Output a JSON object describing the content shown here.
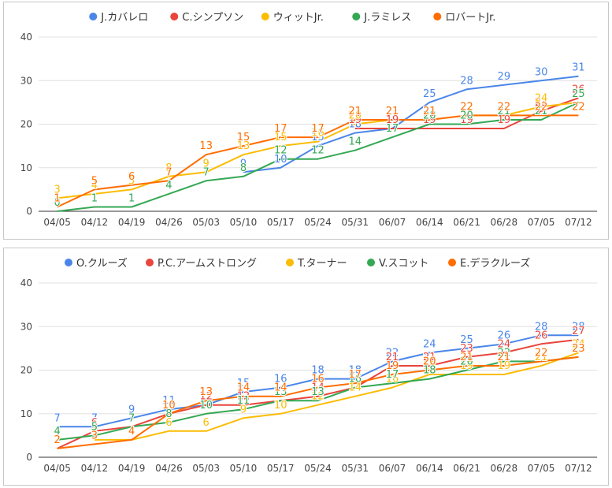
{
  "chart_data": [
    {
      "type": "line",
      "title": "",
      "xlabel": "",
      "ylabel": "",
      "ylim": [
        0,
        40
      ],
      "yticks": [
        0,
        10,
        20,
        30,
        40
      ],
      "grid": true,
      "legend": "top",
      "categories": [
        "04/05",
        "04/12",
        "04/19",
        "04/26",
        "05/03",
        "05/10",
        "05/17",
        "05/24",
        "05/31",
        "06/07",
        "06/14",
        "06/21",
        "06/28",
        "07/05",
        "07/12"
      ],
      "series": [
        {
          "name": "J.カバレロ",
          "color": "#4a86e8",
          "values": [
            null,
            null,
            null,
            null,
            null,
            9,
            10,
            15,
            18,
            19,
            25,
            28,
            29,
            30,
            31
          ]
        },
        {
          "name": "C.シンプソン",
          "color": "#e8453c",
          "values": [
            null,
            null,
            null,
            null,
            null,
            null,
            null,
            null,
            19,
            19,
            19,
            19,
            19,
            23,
            26
          ]
        },
        {
          "name": "ウィットJr.",
          "color": "#fbbc04",
          "values": [
            3,
            4,
            5,
            8,
            9,
            13,
            15,
            16,
            20,
            21,
            21,
            22,
            22,
            24,
            25
          ]
        },
        {
          "name": "J.ラミレス",
          "color": "#34a853",
          "values": [
            0,
            1,
            1,
            4,
            7,
            8,
            12,
            12,
            14,
            17,
            20,
            20,
            21,
            21,
            25
          ]
        },
        {
          "name": "ロバートJr.",
          "color": "#ff6d01",
          "values": [
            1,
            5,
            6,
            7,
            13,
            15,
            17,
            17,
            21,
            21,
            21,
            22,
            22,
            22,
            22
          ]
        }
      ]
    },
    {
      "type": "line",
      "title": "",
      "xlabel": "",
      "ylabel": "",
      "ylim": [
        0,
        40
      ],
      "yticks": [
        0,
        10,
        20,
        30,
        40
      ],
      "grid": true,
      "legend": "top",
      "categories": [
        "04/05",
        "04/12",
        "04/19",
        "04/26",
        "05/03",
        "05/10",
        "05/17",
        "05/24",
        "05/31",
        "06/07",
        "06/14",
        "06/21",
        "06/28",
        "07/05",
        "07/12"
      ],
      "series": [
        {
          "name": "O.クルーズ",
          "color": "#4a86e8",
          "values": [
            7,
            7,
            9,
            11,
            12,
            15,
            16,
            18,
            18,
            22,
            24,
            25,
            26,
            28,
            28
          ]
        },
        {
          "name": "P.C.アームストロング",
          "color": "#e8453c",
          "values": [
            2,
            6,
            7,
            10,
            12,
            12,
            13,
            14,
            16,
            21,
            21,
            23,
            24,
            26,
            27
          ]
        },
        {
          "name": "T.ターナー",
          "color": "#fbbc04",
          "values": [
            null,
            4,
            4,
            6,
            6,
            9,
            10,
            12,
            14,
            16,
            19,
            19,
            19,
            21,
            24
          ]
        },
        {
          "name": "V.スコット",
          "color": "#34a853",
          "values": [
            4,
            5,
            7,
            8,
            10,
            11,
            13,
            13,
            16,
            17,
            18,
            20,
            22,
            22,
            23
          ]
        },
        {
          "name": "E.デラクルーズ",
          "color": "#ff6d01",
          "values": [
            2,
            3,
            4,
            10,
            13,
            14,
            14,
            16,
            17,
            19,
            20,
            21,
            21,
            22,
            23
          ]
        }
      ]
    }
  ]
}
